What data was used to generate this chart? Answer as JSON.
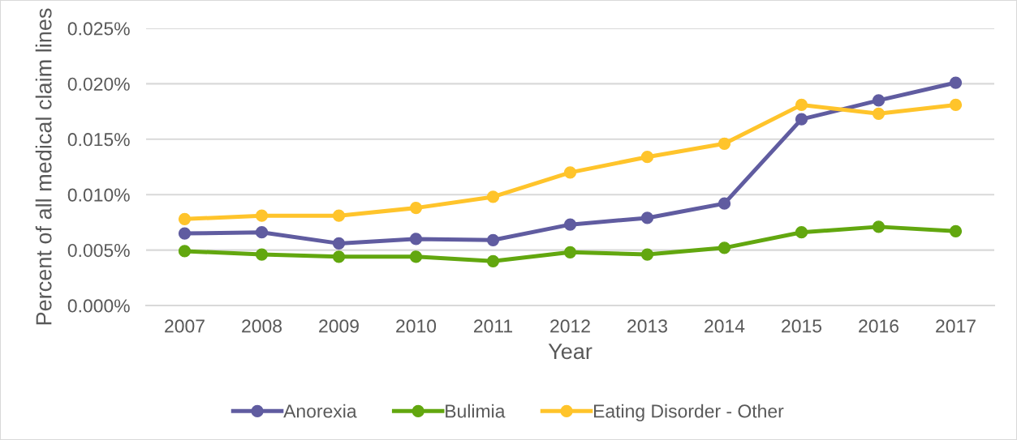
{
  "chart_data": {
    "type": "line",
    "xlabel": "Year",
    "ylabel": "Percent of all medical claim lines",
    "categories": [
      "2007",
      "2008",
      "2009",
      "2010",
      "2011",
      "2012",
      "2013",
      "2014",
      "2015",
      "2016",
      "2017"
    ],
    "series": [
      {
        "name": "Anorexia",
        "color": "#605ca0",
        "values": [
          0.0065,
          0.0066,
          0.0056,
          0.006,
          0.0059,
          0.0073,
          0.0079,
          0.0092,
          0.0168,
          0.0185,
          0.0201
        ]
      },
      {
        "name": "Bulimia",
        "color": "#62a70f",
        "values": [
          0.0049,
          0.0046,
          0.0044,
          0.0044,
          0.004,
          0.0048,
          0.0046,
          0.0052,
          0.0066,
          0.0071,
          0.0067
        ]
      },
      {
        "name": "Eating Disorder - Other",
        "color": "#ffc42b",
        "values": [
          0.0078,
          0.0081,
          0.0081,
          0.0088,
          0.0098,
          0.012,
          0.0134,
          0.0146,
          0.0181,
          0.0173,
          0.0181
        ]
      }
    ],
    "ylim": [
      0,
      0.025
    ],
    "yticks": [
      {
        "value": 0,
        "label": "0.000%"
      },
      {
        "value": 0.005,
        "label": "0.005%"
      },
      {
        "value": 0.01,
        "label": "0.010%"
      },
      {
        "value": 0.015,
        "label": "0.015%"
      },
      {
        "value": 0.02,
        "label": "0.020%"
      },
      {
        "value": 0.025,
        "label": "0.025%"
      }
    ],
    "grid": "y",
    "legend": "bottom",
    "marker": "circle",
    "line_style": "solid"
  }
}
